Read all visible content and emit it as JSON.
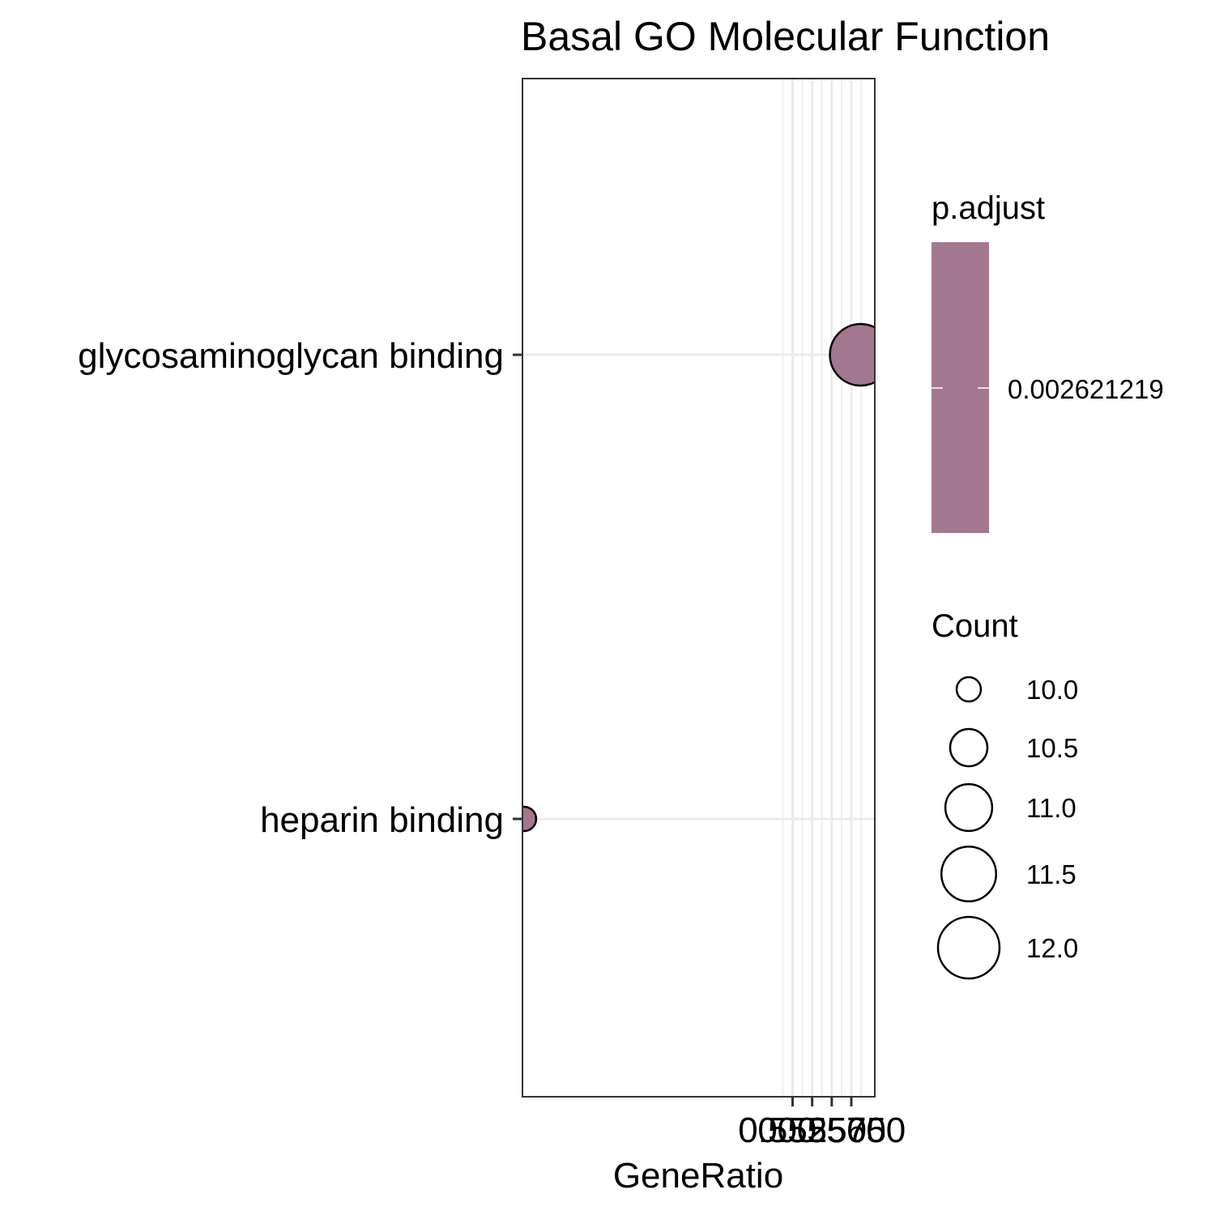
{
  "chart_data": {
    "type": "scatter",
    "title": "Basal GO Molecular Function",
    "xlabel": "GeneRatio",
    "ylabel": "",
    "xlim": [
      0.518,
      0.563
    ],
    "xticks": [
      0.5525,
      0.555,
      0.5575,
      0.56
    ],
    "xtick_labels": [
      "0.5525",
      "0.5550",
      "0.5575",
      "0.5600"
    ],
    "categories": [
      "glycosaminoglycan binding",
      "heparin binding"
    ],
    "points": [
      {
        "term": "glycosaminoglycan binding",
        "x": 0.5612,
        "count": 12,
        "p_adjust": 0.002621219
      },
      {
        "term": "heparin binding",
        "x": 0.5182,
        "count": 10,
        "p_adjust": 0.002621219
      }
    ],
    "grid": true,
    "legend_position": "right",
    "legend": {
      "color_title": "p.adjust",
      "color_value_label": "0.002621219",
      "size_title": "Count",
      "size_values": [
        10.0,
        10.5,
        11.0,
        11.5,
        12.0
      ],
      "size_labels": [
        "10.0",
        "10.5",
        "11.0",
        "11.5",
        "12.0"
      ]
    },
    "colors": {
      "point_fill": "#a3778f",
      "point_stroke": "#000000",
      "grid": "#ebebeb",
      "panel_border": "#333333"
    }
  }
}
